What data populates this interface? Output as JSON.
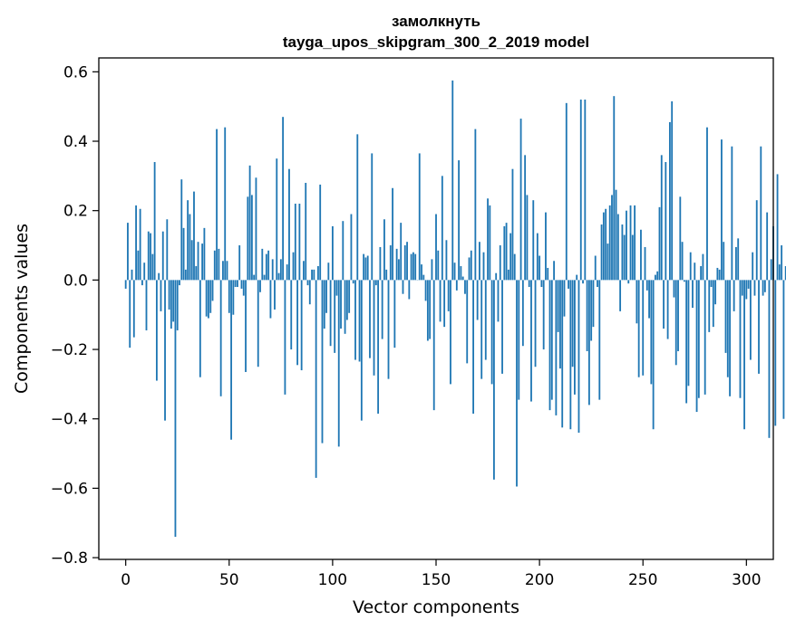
{
  "chart_data": {
    "type": "bar",
    "title": "замолкнуть",
    "subtitle": "tayga_upos_skipgram_300_2_2019 model",
    "xlabel": "Vector components",
    "ylabel": "Components values",
    "xlim": [
      -13,
      313
    ],
    "ylim": [
      -0.805,
      0.64
    ],
    "xticks": [
      0,
      50,
      100,
      150,
      200,
      250,
      300
    ],
    "yticks": [
      -0.8,
      -0.6,
      -0.4,
      -0.2,
      0.0,
      0.2,
      0.4,
      0.6
    ],
    "xtick_labels": [
      "0",
      "50",
      "100",
      "150",
      "200",
      "250",
      "300"
    ],
    "ytick_labels": [
      "−0.8",
      "−0.6",
      "−0.4",
      "−0.2",
      "0.0",
      "0.2",
      "0.4",
      "0.6"
    ],
    "bar_color": "#1f77b4",
    "values": [
      -0.025,
      0.165,
      -0.195,
      0.03,
      -0.165,
      0.215,
      0.085,
      0.205,
      -0.015,
      0.05,
      -0.145,
      0.14,
      0.135,
      0.075,
      0.34,
      -0.29,
      0.02,
      -0.09,
      0.14,
      -0.405,
      0.175,
      -0.085,
      -0.14,
      -0.12,
      -0.74,
      -0.145,
      -0.015,
      0.29,
      0.15,
      0.03,
      0.23,
      0.19,
      0.115,
      0.255,
      0.04,
      0.11,
      -0.28,
      0.105,
      0.15,
      -0.105,
      -0.11,
      -0.095,
      -0.06,
      0.085,
      0.435,
      0.09,
      -0.335,
      0.055,
      0.44,
      0.055,
      -0.095,
      -0.46,
      -0.1,
      -0.02,
      -0.02,
      0.1,
      -0.025,
      -0.045,
      -0.265,
      0.24,
      0.33,
      0.245,
      0.015,
      0.295,
      -0.25,
      -0.035,
      0.09,
      0.015,
      0.075,
      0.085,
      -0.11,
      0.06,
      -0.085,
      0.35,
      0.02,
      0.06,
      0.47,
      -0.33,
      0.045,
      0.32,
      -0.2,
      0.08,
      0.22,
      -0.245,
      0.22,
      -0.26,
      0.055,
      0.28,
      -0.015,
      -0.07,
      0.03,
      0.03,
      -0.57,
      0.04,
      0.275,
      -0.47,
      -0.14,
      -0.095,
      0.05,
      -0.19,
      0.155,
      -0.21,
      -0.045,
      -0.48,
      -0.14,
      0.17,
      -0.155,
      -0.115,
      -0.095,
      0.19,
      -0.01,
      -0.23,
      0.42,
      -0.235,
      -0.405,
      0.075,
      0.065,
      0.07,
      -0.225,
      0.365,
      -0.275,
      -0.015,
      -0.385,
      0.095,
      -0.17,
      0.175,
      0.03,
      -0.285,
      0.1,
      0.265,
      -0.195,
      0.09,
      0.06,
      0.165,
      -0.04,
      0.1,
      0.11,
      -0.055,
      0.075,
      0.08,
      0.075,
      0.0,
      0.365,
      0.045,
      0.015,
      -0.06,
      -0.175,
      -0.17,
      0.06,
      -0.375,
      0.19,
      0.085,
      -0.12,
      0.3,
      -0.135,
      0.115,
      -0.09,
      -0.3,
      0.575,
      0.05,
      -0.03,
      0.345,
      0.04,
      0.01,
      -0.04,
      -0.24,
      0.065,
      0.085,
      -0.385,
      0.435,
      -0.115,
      0.11,
      -0.285,
      0.08,
      -0.23,
      0.235,
      0.215,
      -0.3,
      -0.575,
      0.02,
      -0.12,
      0.1,
      -0.27,
      0.155,
      0.165,
      0.03,
      0.135,
      0.32,
      0.075,
      -0.595,
      -0.345,
      0.465,
      -0.19,
      0.36,
      0.245,
      -0.02,
      -0.35,
      0.23,
      -0.25,
      0.135,
      0.07,
      -0.02,
      -0.2,
      0.195,
      0.035,
      -0.375,
      -0.345,
      0.055,
      -0.39,
      -0.15,
      -0.255,
      -0.425,
      -0.105,
      0.51,
      -0.025,
      -0.43,
      -0.25,
      -0.33,
      0.015,
      -0.44,
      0.52,
      -0.01,
      0.52,
      -0.205,
      -0.36,
      -0.175,
      -0.135,
      0.07,
      -0.02,
      -0.345,
      0.16,
      0.195,
      0.205,
      0.105,
      0.215,
      0.245,
      0.53,
      0.26,
      0.19,
      -0.09,
      0.16,
      0.13,
      0.2,
      -0.01,
      0.215,
      0.13,
      0.215,
      -0.125,
      -0.28,
      0.145,
      -0.275,
      0.095,
      -0.03,
      -0.11,
      -0.3,
      -0.43,
      0.015,
      0.025,
      0.21,
      0.36,
      -0.14,
      0.34,
      -0.17,
      0.455,
      0.515,
      -0.05,
      -0.245,
      -0.205,
      0.24,
      0.11,
      -0.005,
      -0.355,
      -0.305,
      0.08,
      -0.08,
      0.05,
      -0.38,
      -0.34,
      0.04,
      0.075,
      -0.33,
      0.44,
      -0.15,
      -0.02,
      -0.135,
      -0.07,
      0.035,
      0.03,
      0.405,
      0.11,
      -0.21,
      -0.28,
      -0.335,
      0.385,
      -0.09,
      0.095,
      0.12,
      -0.34,
      -0.045,
      -0.43,
      -0.055,
      -0.025,
      -0.23,
      0.08,
      -0.045,
      0.23,
      -0.27,
      0.385,
      -0.045,
      -0.035,
      0.195,
      -0.455,
      0.06,
      0.155,
      -0.42,
      0.305,
      0.045,
      0.1,
      -0.4,
      0.04
    ]
  }
}
